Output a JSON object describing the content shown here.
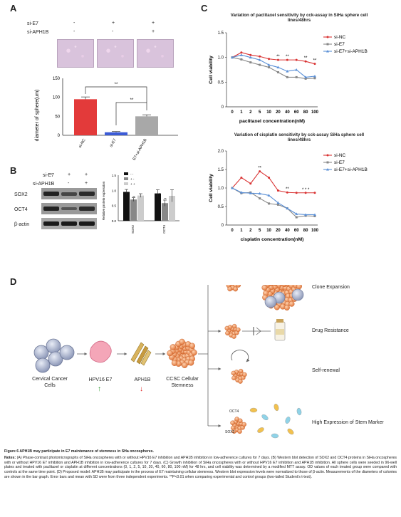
{
  "panels": {
    "A": "A",
    "B": "B",
    "C": "C",
    "D": "D"
  },
  "panel_a": {
    "row_labels": [
      "si-E7",
      "si-APH1B"
    ],
    "row1_marks": [
      "-",
      "+",
      "+"
    ],
    "row2_marks": [
      "-",
      "-",
      "+"
    ],
    "chart_data": {
      "type": "bar",
      "ylabel": "diameter of sphere(um)",
      "categories": [
        "si-NC",
        "si-E7",
        "si-E7+si-APH1B"
      ],
      "values": [
        95,
        8,
        50
      ],
      "errors": [
        6,
        2,
        4
      ],
      "ylim": [
        0,
        150
      ],
      "yticks": [
        0,
        50,
        100,
        150
      ],
      "colors": [
        "#e33a3a",
        "#3b5bd6",
        "#a8a8a8"
      ],
      "sig": [
        "**",
        "**"
      ]
    }
  },
  "panel_b": {
    "row_labels": [
      "si-E7",
      "si-APH1B"
    ],
    "row1_marks": [
      "-",
      "+",
      "+"
    ],
    "row2_marks": [
      "-",
      "-",
      "+"
    ],
    "blot_labels": [
      "SOX2",
      "OCT4",
      "β-actin"
    ],
    "chart_data": {
      "type": "bar",
      "ylabel": "Relative protein expression",
      "categories": [
        "SOX2",
        "OCT4"
      ],
      "series": [
        {
          "name": "- -",
          "values": [
            0.95,
            0.9
          ],
          "errors": [
            0.08,
            0.12
          ]
        },
        {
          "name": "+ -",
          "values": [
            0.7,
            0.58
          ],
          "errors": [
            0.06,
            0.1
          ]
        },
        {
          "name": "+ +",
          "values": [
            0.83,
            0.82
          ],
          "errors": [
            0.06,
            0.2
          ]
        }
      ],
      "colors": [
        "#111111",
        "#888888",
        "#cccccc"
      ],
      "ylim": [
        0,
        1.5
      ],
      "yticks": [
        "0.0",
        "0.5",
        "1.0",
        "1.5"
      ],
      "sig": [
        "**",
        "**",
        "*"
      ]
    }
  },
  "panel_c": {
    "chart_data": [
      {
        "type": "line",
        "title": "Variation of paclitaxel sensitivity by cck-assay in SiHa sphere cell lines/48hrs",
        "xlabel": "paclitaxel concentration(nM)",
        "ylabel": "Cell viability",
        "x": [
          "0",
          "1",
          "2",
          "5",
          "10",
          "20",
          "40",
          "60",
          "80",
          "100"
        ],
        "series": [
          {
            "name": "si-NC",
            "color": "#d93232",
            "values": [
              1.0,
              1.1,
              1.05,
              1.02,
              0.97,
              0.95,
              0.95,
              0.95,
              0.92,
              0.87
            ]
          },
          {
            "name": "si-E7",
            "color": "#888888",
            "values": [
              1.0,
              0.96,
              0.9,
              0.85,
              0.8,
              0.7,
              0.6,
              0.6,
              0.57,
              0.58
            ]
          },
          {
            "name": "si-E7+si-APH1B",
            "color": "#5a8fd6",
            "values": [
              1.0,
              1.05,
              1.0,
              0.95,
              0.85,
              0.8,
              0.72,
              0.75,
              0.6,
              0.62
            ]
          }
        ],
        "ylim": [
          0,
          1.5
        ],
        "yticks": [
          "0",
          "0.5",
          "1.0",
          "1.5"
        ],
        "sig": [
          {
            "x": "20",
            "label": "**"
          },
          {
            "x": "40",
            "label": "**"
          },
          {
            "x": "80",
            "label": "**"
          },
          {
            "x": "100",
            "label": "**"
          }
        ]
      },
      {
        "type": "line",
        "title": "Variation of cisplatin sensitivity by cck-assay SiHa sphere cell lines/48hrs",
        "xlabel": "cisplatin concentration(nM)",
        "ylabel": "Cell viability",
        "x": [
          "0",
          "1",
          "2",
          "5",
          "10",
          "20",
          "40",
          "60",
          "80",
          "100"
        ],
        "series": [
          {
            "name": "si-NC",
            "color": "#d93232",
            "values": [
              1.0,
              1.28,
              1.12,
              1.45,
              1.28,
              0.93,
              0.88,
              0.87,
              0.87,
              0.87
            ]
          },
          {
            "name": "si-E7",
            "color": "#888888",
            "values": [
              1.0,
              0.86,
              0.88,
              0.72,
              0.58,
              0.55,
              0.45,
              0.21,
              0.25,
              0.24
            ]
          },
          {
            "name": "si-E7+si-APH1B",
            "color": "#5a8fd6",
            "values": [
              1.0,
              0.88,
              0.86,
              0.85,
              0.8,
              0.6,
              0.45,
              0.3,
              0.28,
              0.28
            ]
          }
        ],
        "ylim": [
          0,
          2.0
        ],
        "yticks": [
          "0",
          "0.5",
          "1.0",
          "1.5",
          "2.0"
        ],
        "sig": [
          {
            "x": "5",
            "label": "**"
          },
          {
            "x": "40",
            "label": "**"
          },
          {
            "x": "80",
            "label": "* * *"
          }
        ]
      }
    ]
  },
  "panel_d": {
    "step_cells": "Cervical Cancer Cells",
    "step_hpv": "HPV16 E7",
    "step_aph": "APH1B",
    "step_ccsc": "CCSC Cellular Stemness",
    "outcomes": [
      "Clone Expansion",
      "Drug Resistance",
      "Self-renewal",
      "High Expression of Stem Marker"
    ],
    "marker_oct4": "OCT4",
    "marker_sox2": "SOX2",
    "up_arrow": "↑",
    "down_arrow": "↓"
  },
  "caption": {
    "title": "Figure 6 APH1B may participate in E7 maintenance of stemness in SHa oncospheres.",
    "notes_label": "Notes:",
    "text": "(A) Phase-contrast photomicrographs of SiHa oncospheres with or without HPV16 E7 inhibition and APH1B inhibition in low-adherence cultures for 7 days. (B) Western blot detection of SOX2 and OCT4 proteins in SiHa oncospheres with or without HPV16 E7 inhibition and APH1B inhibition in low-adherence cultures for 7 days. (C) Growth inhibition of SiHa oncospheres with or without HPV16 E7 inhibition and APH1B inhibition. All sphere cells were seeded in 96-well plates and treated with paclitaxel or cisplatin at different concentrations (0, 1, 2, 5, 10, 20, 40, 60, 80, 100 nM) for 48 hrs, and cell viability was determined by a modified MTT assay. OD values of each treated group were compared with controls at the same time point. (D) Proposed model: APH1B may participate in the process of E7 maintaining cellular stemness. Western blot expression levels were normalized to those of β-actin. Measurements of the diameters of colonies are shown in the bar graph. Error bars and mean with SD were from three independent experiments. **P<0.01 when comparing experimental and control groups (two-tailed Student's t-test)."
  }
}
